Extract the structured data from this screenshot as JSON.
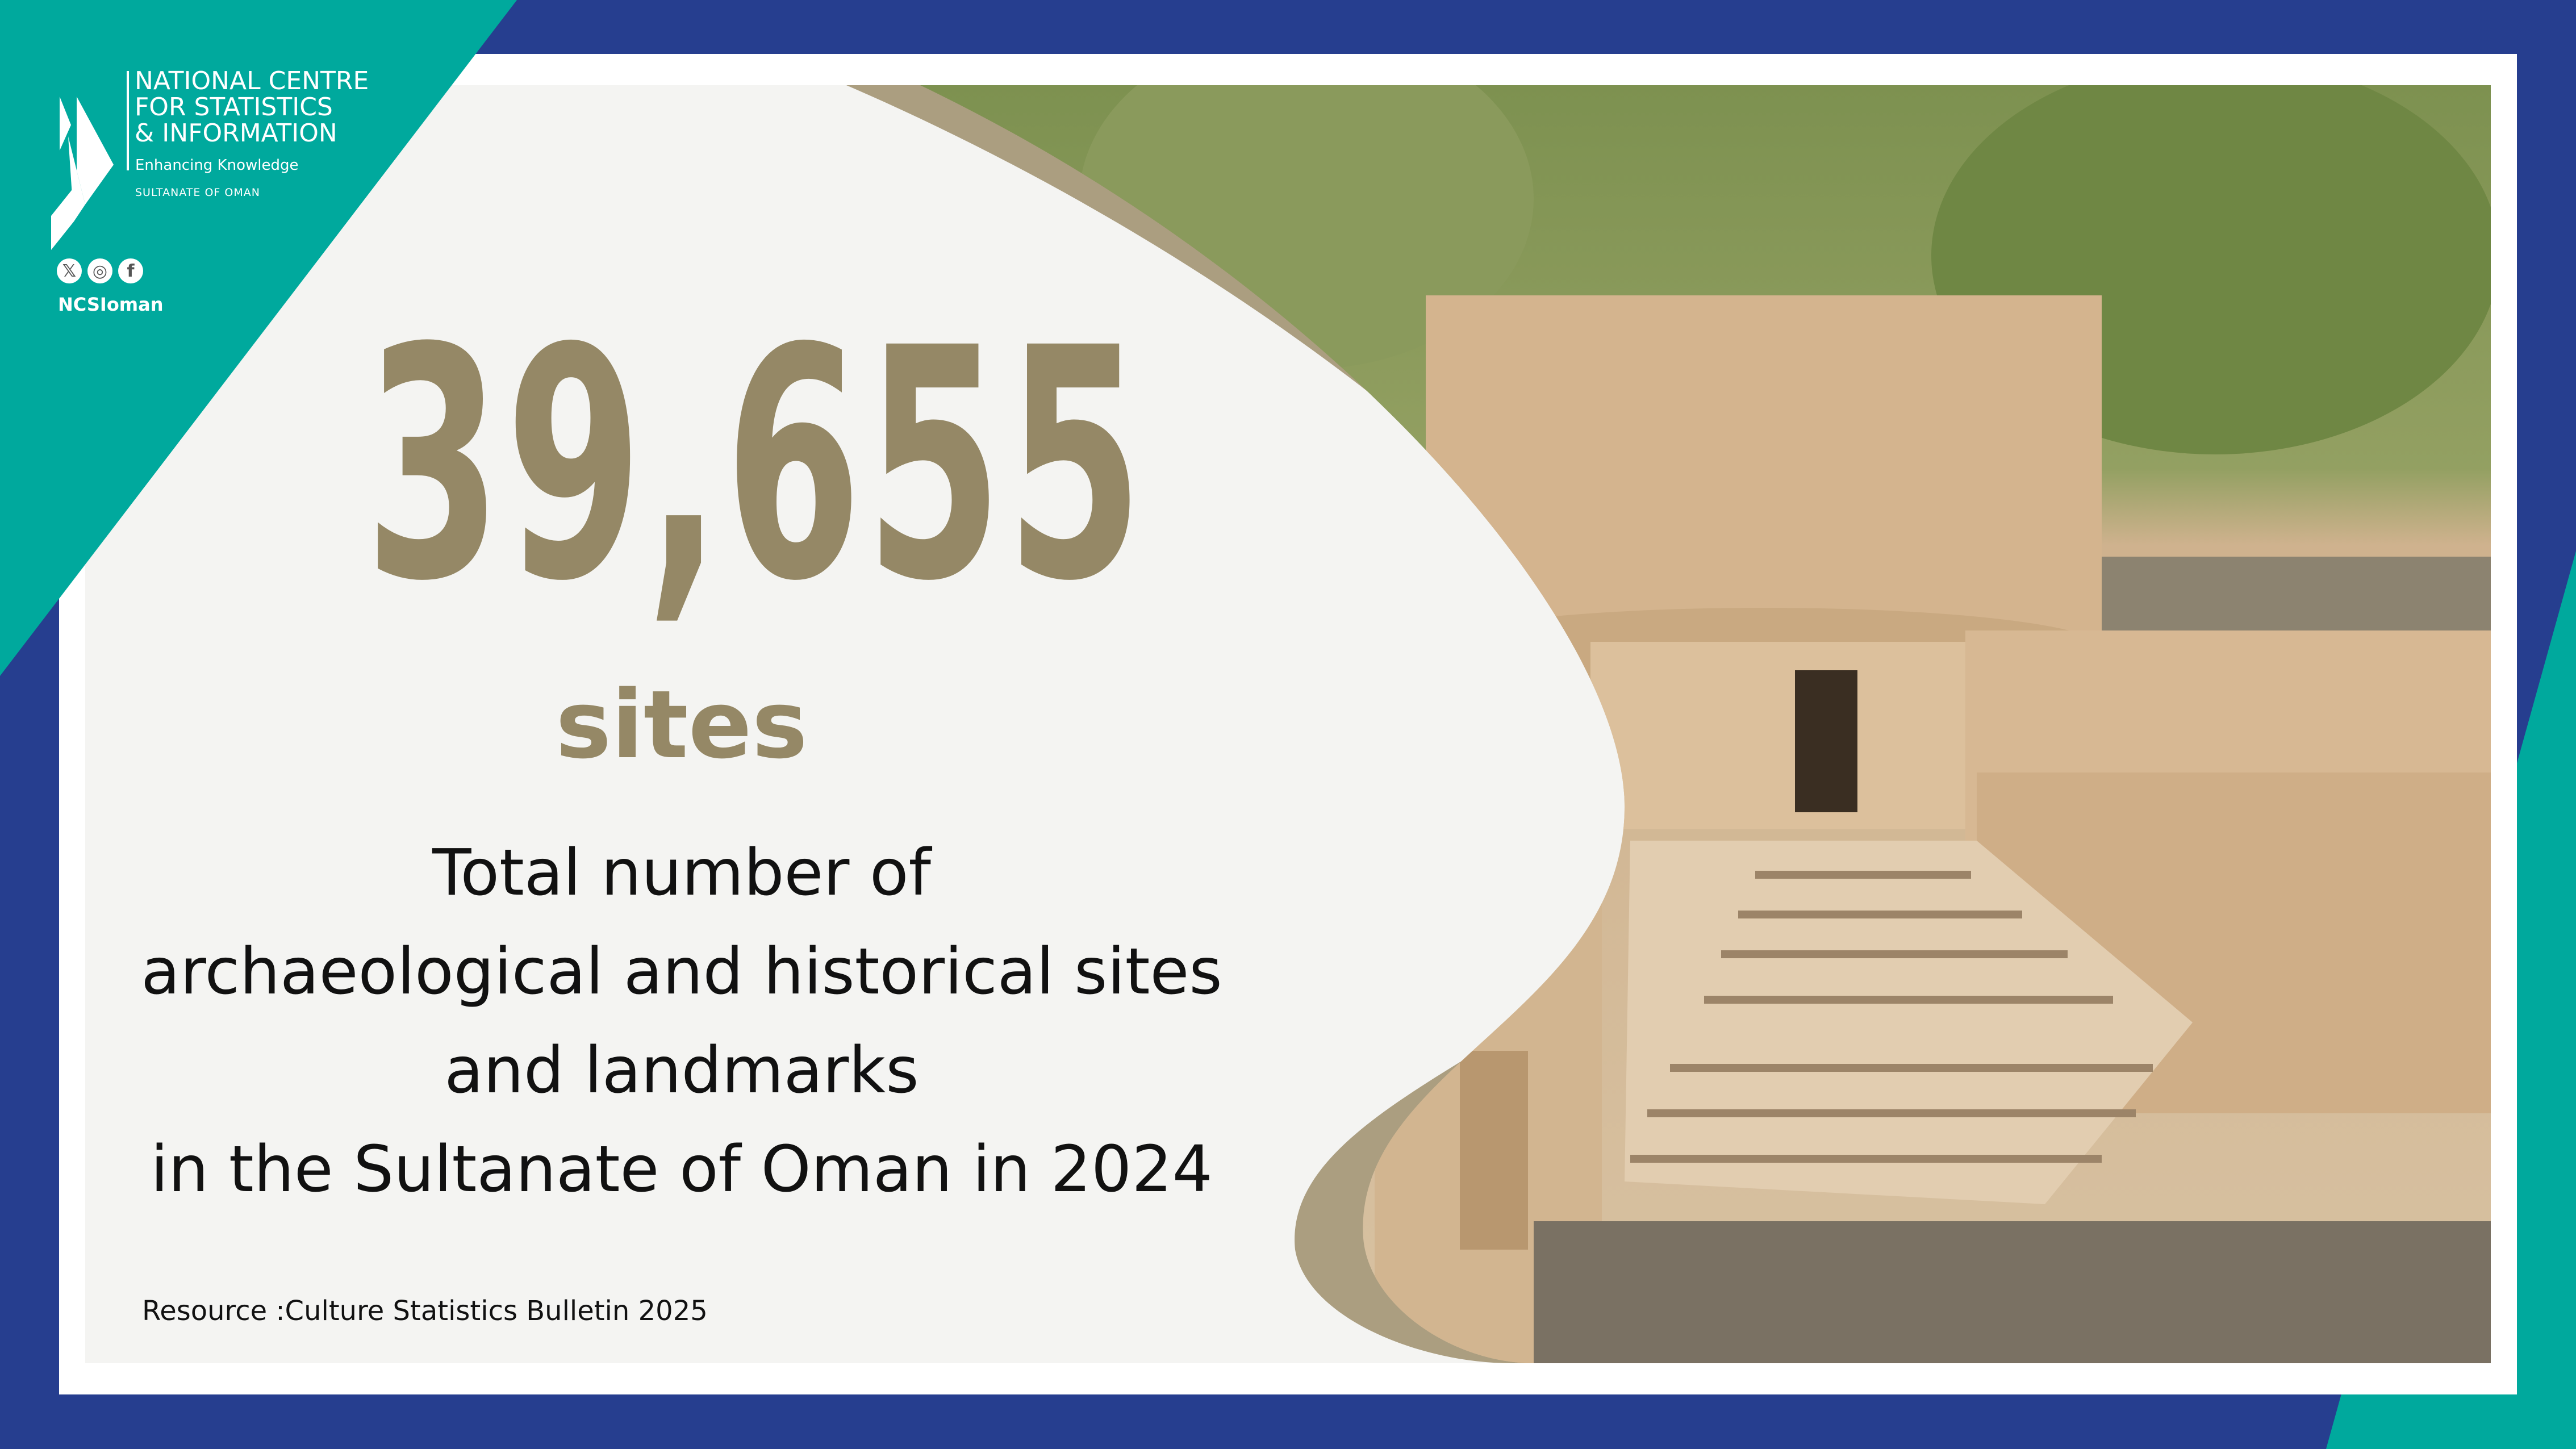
{
  "colors": {
    "blue": "#263e8f",
    "teal": "#00a99d",
    "olive": "#958866",
    "wave": "#ab9e80",
    "panel": "#f4f4f2"
  },
  "logo": {
    "org_line1": "NATIONAL CENTRE",
    "org_line2": "FOR STATISTICS",
    "org_line3": "& INFORMATION",
    "tagline": "Enhancing Knowledge",
    "country": "SULTANATE OF OMAN"
  },
  "social": {
    "icons": [
      "x-icon",
      "instagram-icon",
      "facebook-icon"
    ],
    "x_glyph": "𝕏",
    "ig_glyph": "◎",
    "fb_glyph": "f",
    "handle": "NCSIoman"
  },
  "stat": {
    "value": "39,655",
    "unit": "sites"
  },
  "description": {
    "line1": "Total number of",
    "line2": "archaeological and historical sites",
    "line3": "and landmarks",
    "line4": "in the Sultanate of Oman in 2024"
  },
  "source": "Resource :Culture Statistics Bulletin 2025"
}
